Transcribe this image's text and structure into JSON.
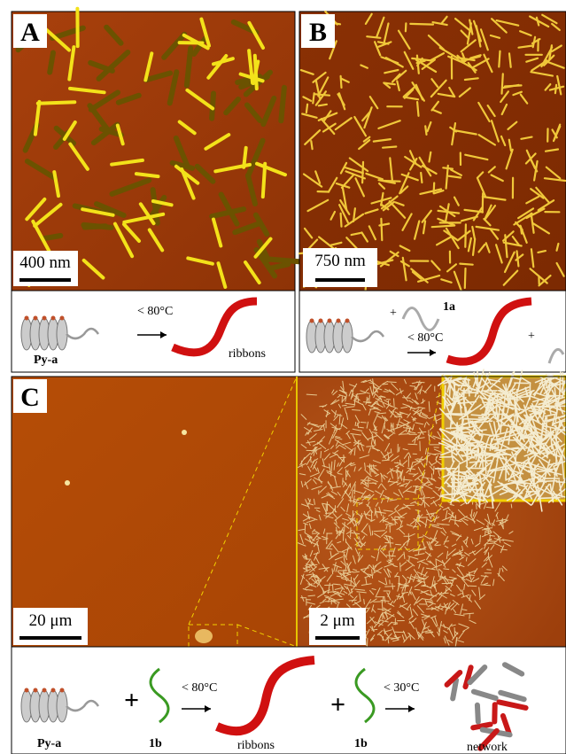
{
  "panel_a": {
    "label": "A",
    "scale_bar": "400 nm",
    "molecule": "Py-a",
    "condition": "< 80°C",
    "product": "ribbons"
  },
  "panel_b": {
    "label": "B",
    "scale_bar": "750 nm",
    "plus": "+",
    "strand": "1a",
    "condition": "< 80°C"
  },
  "panel_c": {
    "label": "C",
    "scale_bar_left": "20 μm",
    "scale_bar_right": "2 μm",
    "molecule": "Py-a",
    "plus": "+",
    "strand": "1b",
    "condition_1": "< 80°C",
    "product_1": "ribbons",
    "condition_2": "< 30°C",
    "product_2": "network"
  }
}
